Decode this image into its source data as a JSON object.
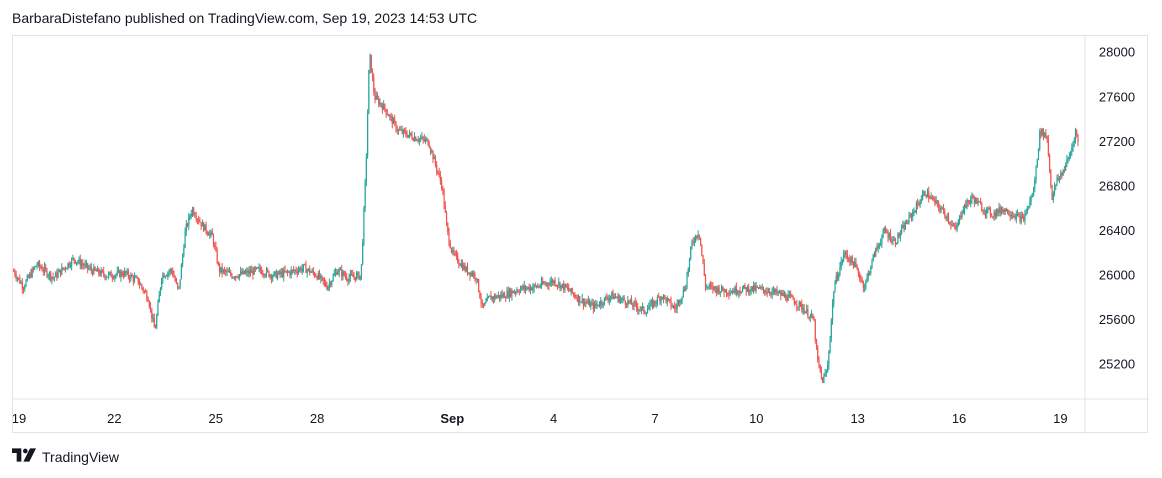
{
  "header": {
    "text": "BarbaraDistefano published on TradingView.com, Sep 19, 2023 14:53 UTC"
  },
  "footer": {
    "brand": "TradingView",
    "logo_icon": "tradingview-logo-icon"
  },
  "colors": {
    "up": "#26a69a",
    "down": "#ef5350",
    "axis_text": "#131722",
    "border": "#e0e3eb"
  },
  "chart_data": {
    "type": "candlestick",
    "title": "",
    "xlabel": "",
    "ylabel": "",
    "y_ticks": [
      25200,
      25600,
      26000,
      26400,
      26800,
      27200,
      27600,
      28000
    ],
    "ylim": [
      24900,
      28150
    ],
    "x_ticks": [
      {
        "label": "19",
        "day": 0
      },
      {
        "label": "22",
        "day": 3
      },
      {
        "label": "25",
        "day": 6
      },
      {
        "label": "28",
        "day": 9
      },
      {
        "label": "Sep",
        "day": 13,
        "bold": true
      },
      {
        "label": "4",
        "day": 16
      },
      {
        "label": "7",
        "day": 19
      },
      {
        "label": "10",
        "day": 22
      },
      {
        "label": "13",
        "day": 25
      },
      {
        "label": "16",
        "day": 28
      },
      {
        "label": "19",
        "day": 31
      }
    ],
    "xlim_days": [
      0,
      31.55
    ],
    "price_path": [
      [
        0.0,
        26050
      ],
      [
        0.3,
        25900
      ],
      [
        0.7,
        26100
      ],
      [
        1.2,
        25980
      ],
      [
        1.8,
        26150
      ],
      [
        2.3,
        26050
      ],
      [
        2.8,
        26000
      ],
      [
        3.3,
        26020
      ],
      [
        3.7,
        25950
      ],
      [
        4.0,
        25800
      ],
      [
        4.2,
        25500
      ],
      [
        4.4,
        26000
      ],
      [
        4.7,
        26050
      ],
      [
        4.9,
        25850
      ],
      [
        5.1,
        26400
      ],
      [
        5.3,
        26600
      ],
      [
        5.6,
        26450
      ],
      [
        5.9,
        26350
      ],
      [
        6.1,
        26050
      ],
      [
        6.5,
        26000
      ],
      [
        6.9,
        26020
      ],
      [
        7.3,
        26050
      ],
      [
        7.7,
        26000
      ],
      [
        8.2,
        26030
      ],
      [
        8.6,
        26070
      ],
      [
        9.0,
        26000
      ],
      [
        9.3,
        25900
      ],
      [
        9.6,
        26050
      ],
      [
        9.9,
        25980
      ],
      [
        10.3,
        26000
      ],
      [
        10.45,
        27000
      ],
      [
        10.55,
        28000
      ],
      [
        10.7,
        27600
      ],
      [
        11.0,
        27500
      ],
      [
        11.4,
        27300
      ],
      [
        11.8,
        27250
      ],
      [
        12.3,
        27200
      ],
      [
        12.7,
        26800
      ],
      [
        12.85,
        26400
      ],
      [
        13.0,
        26200
      ],
      [
        13.4,
        26050
      ],
      [
        13.7,
        26000
      ],
      [
        13.9,
        25700
      ],
      [
        14.1,
        25800
      ],
      [
        14.5,
        25820
      ],
      [
        15.0,
        25880
      ],
      [
        15.5,
        25900
      ],
      [
        16.0,
        25950
      ],
      [
        16.4,
        25880
      ],
      [
        16.8,
        25780
      ],
      [
        17.2,
        25720
      ],
      [
        17.7,
        25820
      ],
      [
        18.2,
        25760
      ],
      [
        18.7,
        25680
      ],
      [
        19.2,
        25820
      ],
      [
        19.6,
        25700
      ],
      [
        19.9,
        25900
      ],
      [
        20.1,
        26300
      ],
      [
        20.3,
        26400
      ],
      [
        20.5,
        25900
      ],
      [
        20.8,
        25880
      ],
      [
        21.2,
        25860
      ],
      [
        21.6,
        25880
      ],
      [
        22.0,
        25880
      ],
      [
        22.4,
        25860
      ],
      [
        22.8,
        25820
      ],
      [
        23.1,
        25780
      ],
      [
        23.4,
        25700
      ],
      [
        23.7,
        25600
      ],
      [
        23.8,
        25250
      ],
      [
        23.95,
        25050
      ],
      [
        24.1,
        25150
      ],
      [
        24.3,
        25900
      ],
      [
        24.6,
        26200
      ],
      [
        24.9,
        26100
      ],
      [
        25.2,
        25900
      ],
      [
        25.5,
        26200
      ],
      [
        25.8,
        26400
      ],
      [
        26.1,
        26300
      ],
      [
        26.4,
        26450
      ],
      [
        26.7,
        26600
      ],
      [
        27.0,
        26750
      ],
      [
        27.3,
        26650
      ],
      [
        27.6,
        26550
      ],
      [
        27.9,
        26400
      ],
      [
        28.1,
        26600
      ],
      [
        28.4,
        26700
      ],
      [
        28.7,
        26600
      ],
      [
        29.0,
        26550
      ],
      [
        29.3,
        26600
      ],
      [
        29.6,
        26550
      ],
      [
        29.9,
        26500
      ],
      [
        30.2,
        26750
      ],
      [
        30.4,
        27300
      ],
      [
        30.6,
        27250
      ],
      [
        30.75,
        26700
      ],
      [
        30.9,
        26850
      ],
      [
        31.1,
        26950
      ],
      [
        31.3,
        27100
      ],
      [
        31.45,
        27300
      ],
      [
        31.55,
        27150
      ]
    ]
  }
}
